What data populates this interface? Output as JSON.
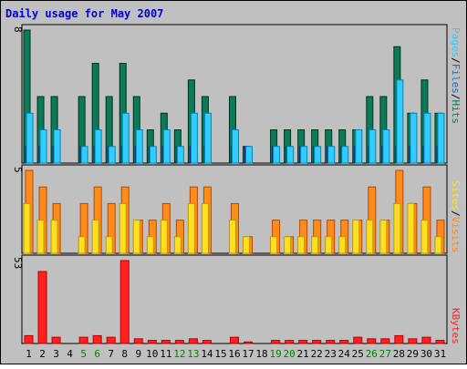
{
  "chart_data": [
    {
      "type": "bar",
      "title": "Daily usage for May 2007",
      "categories": [
        "1",
        "2",
        "3",
        "4",
        "5",
        "6",
        "7",
        "8",
        "9",
        "10",
        "11",
        "12",
        "13",
        "14",
        "15",
        "16",
        "17",
        "18",
        "19",
        "20",
        "21",
        "22",
        "23",
        "24",
        "25",
        "26",
        "27",
        "28",
        "29",
        "30",
        "31"
      ],
      "weekend_days": [
        "5",
        "6",
        "12",
        "13",
        "19",
        "20",
        "26",
        "27"
      ],
      "y_tick_label": "8",
      "series": [
        {
          "name": "Hits",
          "color": "#0b7a5a",
          "values": [
            8,
            4,
            4,
            0,
            4,
            6,
            4,
            6,
            4,
            2,
            3,
            2,
            5,
            4,
            0,
            4,
            1,
            0,
            2,
            2,
            2,
            2,
            2,
            2,
            2,
            4,
            4,
            7,
            3,
            5,
            3
          ]
        },
        {
          "name": "Files",
          "color": "#1e6ac8",
          "values": [
            1,
            1,
            1,
            0,
            1,
            1,
            1,
            1,
            1,
            1,
            1,
            1,
            1,
            1,
            0,
            1,
            1,
            0,
            1,
            1,
            1,
            1,
            1,
            1,
            1,
            1,
            1,
            1,
            1,
            1,
            1
          ]
        },
        {
          "name": "Pages",
          "color": "#33ccff",
          "values": [
            3,
            2,
            2,
            0,
            1,
            2,
            1,
            3,
            2,
            1,
            2,
            1,
            3,
            3,
            0,
            2,
            1,
            0,
            1,
            1,
            1,
            1,
            1,
            1,
            2,
            2,
            2,
            5,
            3,
            3,
            3
          ]
        }
      ]
    },
    {
      "type": "bar",
      "y_tick_label": "5",
      "series": [
        {
          "name": "Visits",
          "color": "#ff8c1a",
          "values": [
            5,
            4,
            3,
            0,
            3,
            4,
            3,
            4,
            2,
            2,
            3,
            2,
            4,
            4,
            0,
            3,
            1,
            0,
            2,
            1,
            2,
            2,
            2,
            2,
            2,
            4,
            2,
            5,
            3,
            4,
            2
          ]
        },
        {
          "name": "Sites",
          "color": "#ffe020",
          "values": [
            3,
            2,
            2,
            0,
            1,
            2,
            1,
            3,
            2,
            1,
            2,
            1,
            3,
            3,
            0,
            2,
            1,
            0,
            1,
            1,
            1,
            1,
            1,
            1,
            2,
            2,
            2,
            3,
            3,
            2,
            1
          ]
        }
      ]
    },
    {
      "type": "bar",
      "y_tick_label": "53",
      "series": [
        {
          "name": "KBytes",
          "color": "#ff2020",
          "values": [
            5,
            46,
            4,
            0,
            4,
            5,
            4,
            53,
            3,
            2,
            2,
            2,
            3,
            2,
            0,
            4,
            1,
            0,
            2,
            2,
            2,
            2,
            2,
            2,
            4,
            3,
            3,
            5,
            3,
            4,
            2
          ]
        }
      ]
    }
  ]
}
